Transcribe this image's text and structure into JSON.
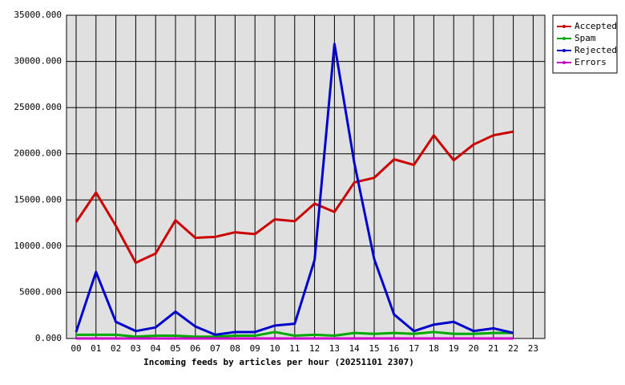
{
  "chart_data": {
    "type": "line",
    "xlabel": "Incoming feeds by articles per hour (20251101 2307)",
    "categories": [
      "00",
      "01",
      "02",
      "03",
      "04",
      "05",
      "06",
      "07",
      "08",
      "09",
      "10",
      "11",
      "12",
      "13",
      "14",
      "15",
      "16",
      "17",
      "18",
      "19",
      "20",
      "21",
      "22",
      "23"
    ],
    "series": [
      {
        "name": "Accepted",
        "color": "#cc0000",
        "values": [
          12600,
          15800,
          12200,
          8200,
          9200,
          12800,
          10900,
          11000,
          11500,
          11300,
          12900,
          12700,
          14600,
          13700,
          16900,
          17400,
          19400,
          18800,
          22000,
          19300,
          21000,
          22000,
          22400,
          null
        ]
      },
      {
        "name": "Spam",
        "color": "#00aa00",
        "values": [
          400,
          400,
          400,
          200,
          300,
          300,
          200,
          200,
          300,
          300,
          700,
          300,
          400,
          300,
          600,
          500,
          600,
          500,
          700,
          500,
          500,
          600,
          600,
          null
        ]
      },
      {
        "name": "Rejected",
        "color": "#0000cc",
        "values": [
          700,
          7200,
          1800,
          800,
          1200,
          2900,
          1300,
          400,
          700,
          700,
          1400,
          1600,
          8500,
          31900,
          19000,
          8600,
          2600,
          800,
          1500,
          1800,
          800,
          1100,
          600,
          null
        ]
      },
      {
        "name": "Errors",
        "color": "#cc00cc",
        "values": [
          0,
          0,
          0,
          0,
          0,
          0,
          0,
          0,
          0,
          0,
          0,
          0,
          0,
          0,
          0,
          0,
          0,
          0,
          0,
          0,
          0,
          0,
          0,
          null
        ]
      }
    ],
    "ylim": [
      0,
      35000
    ],
    "yticks": [
      {
        "value": 0,
        "label": "0.000"
      },
      {
        "value": 5000,
        "label": "5000.000"
      },
      {
        "value": 10000,
        "label": "10000.000"
      },
      {
        "value": 15000,
        "label": "15000.000"
      },
      {
        "value": 20000,
        "label": "20000.000"
      },
      {
        "value": 25000,
        "label": "25000.000"
      },
      {
        "value": 30000,
        "label": "30000.000"
      },
      {
        "value": 35000,
        "label": "35000.000"
      }
    ],
    "grid": true,
    "legend": "outside-top-right"
  }
}
